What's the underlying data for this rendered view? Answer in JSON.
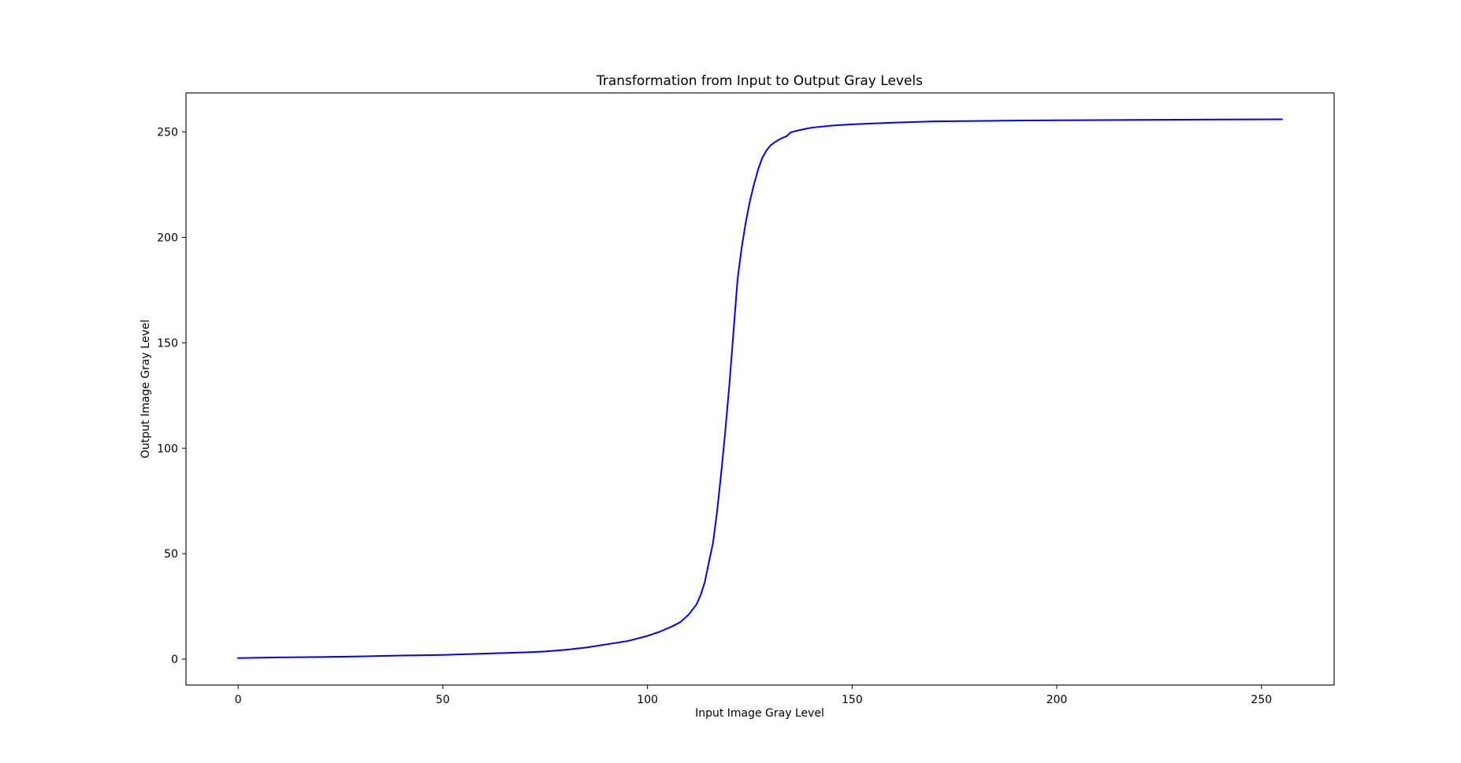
{
  "chart_data": {
    "type": "line",
    "title": "Transformation from Input to Output Gray Levels",
    "xlabel": "Input Image Gray Level",
    "ylabel": "Output Image Gray Level",
    "xlim": [
      -12.75,
      267.75
    ],
    "ylim": [
      -12.3,
      268.5
    ],
    "xticks": [
      0,
      50,
      100,
      150,
      200,
      250
    ],
    "yticks": [
      0,
      50,
      100,
      150,
      200,
      250
    ],
    "grid": false,
    "series": [
      {
        "color": "#0000ff",
        "x": [
          0,
          10,
          20,
          30,
          40,
          50,
          60,
          70,
          75,
          80,
          85,
          90,
          95,
          100,
          103,
          106,
          108,
          110,
          112,
          113,
          114,
          115,
          116,
          117,
          118,
          119,
          120,
          121,
          122,
          123,
          124,
          125,
          126,
          127,
          128,
          129,
          130,
          131,
          132,
          133,
          134,
          135,
          137,
          140,
          145,
          150,
          160,
          170,
          185,
          200,
          220,
          240,
          255
        ],
        "y": [
          0.5,
          0.8,
          1.0,
          1.3,
          1.7,
          2.0,
          2.6,
          3.2,
          3.6,
          4.4,
          5.5,
          7.0,
          8.5,
          11.0,
          13.0,
          15.5,
          17.5,
          21.0,
          26.0,
          30.5,
          36.5,
          46.0,
          55.0,
          70.0,
          88.0,
          108.0,
          130.0,
          155.0,
          180.0,
          195.0,
          207.0,
          217.0,
          225.0,
          232.0,
          237.5,
          241.0,
          243.5,
          245.0,
          246.2,
          247.2,
          248.0,
          249.8,
          250.8,
          252.0,
          253.0,
          253.6,
          254.4,
          255.0,
          255.3,
          255.5,
          255.7,
          255.9,
          256.0
        ]
      }
    ]
  }
}
